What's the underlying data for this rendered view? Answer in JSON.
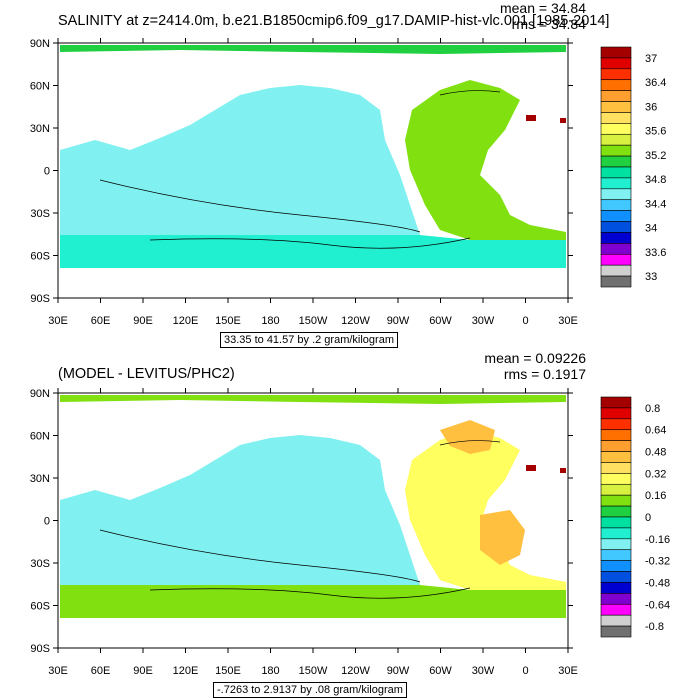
{
  "axes": {
    "lat_labels": [
      "90N",
      "60N",
      "30N",
      "0",
      "30S",
      "60S",
      "90S"
    ],
    "lon_labels": [
      "30E",
      "60E",
      "90E",
      "120E",
      "150E",
      "180",
      "150W",
      "120W",
      "90W",
      "60W",
      "30W",
      "0",
      "30E"
    ]
  },
  "top": {
    "title": "SALINITY at z=2414.0m, b.e21.B1850cmip6.f09_g17.DAMIP-hist-vlc.001 [1985-2014]",
    "mean": "mean = 34.84",
    "rms": "rms = 34.84",
    "range": "33.35 to 41.57 by .2 gram/kilogram",
    "colorbar": {
      "labels": [
        "37",
        "36.4",
        "36",
        "35.6",
        "35.2",
        "34.8",
        "34.4",
        "34",
        "33.6",
        "33"
      ],
      "colors": [
        "#a50000",
        "#e00000",
        "#ff3000",
        "#ff7000",
        "#ff9f30",
        "#ffc040",
        "#ffe060",
        "#ffff60",
        "#d8f040",
        "#80e010",
        "#20d040",
        "#00e0a0",
        "#20f0d0",
        "#80f0f0",
        "#40c8ff",
        "#1090ff",
        "#0050e0",
        "#0000d0",
        "#8000d0",
        "#ff00ff",
        "#d0d0d0",
        "#707070"
      ]
    },
    "map_colors": {
      "pacific": "#80f0f0",
      "atlantic": "#80e010",
      "southern": "#20f0d0",
      "arctic": "#20d040",
      "med": "#a50000"
    }
  },
  "bottom": {
    "title": "(MODEL - LEVITUS/PHC2)",
    "mean": "mean = 0.09226",
    "rms": "rms = 0.1917",
    "range": "-.7263 to 2.9137 by .08 gram/kilogram",
    "colorbar": {
      "labels": [
        "0.8",
        "0.64",
        "0.48",
        "0.32",
        "0.16",
        "0",
        "-0.16",
        "-0.32",
        "-0.48",
        "-0.64",
        "-0.8"
      ],
      "colors": [
        "#a50000",
        "#e00000",
        "#ff3000",
        "#ff7000",
        "#ff9f30",
        "#ffc040",
        "#ffe060",
        "#ffff60",
        "#d8f040",
        "#80e010",
        "#20d040",
        "#00e0a0",
        "#20f0d0",
        "#80f0f0",
        "#40c8ff",
        "#1090ff",
        "#0050e0",
        "#0000d0",
        "#8000d0",
        "#ff00ff",
        "#d0d0d0",
        "#707070"
      ]
    },
    "map_colors": {
      "pacific": "#80f0f0",
      "atlantic": "#ffff60",
      "southern": "#80e010",
      "arctic": "#80e010",
      "med": "#a50000",
      "patch": "#ffc040"
    }
  }
}
